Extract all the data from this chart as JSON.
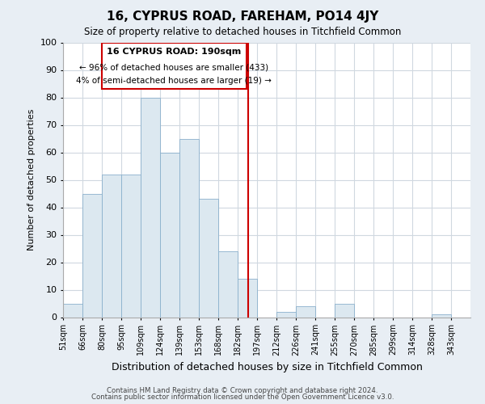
{
  "title": "16, CYPRUS ROAD, FAREHAM, PO14 4JY",
  "subtitle": "Size of property relative to detached houses in Titchfield Common",
  "xlabel": "Distribution of detached houses by size in Titchfield Common",
  "ylabel": "Number of detached properties",
  "footer_line1": "Contains HM Land Registry data © Crown copyright and database right 2024.",
  "footer_line2": "Contains public sector information licensed under the Open Government Licence v3.0.",
  "bin_labels": [
    "51sqm",
    "66sqm",
    "80sqm",
    "95sqm",
    "109sqm",
    "124sqm",
    "139sqm",
    "153sqm",
    "168sqm",
    "182sqm",
    "197sqm",
    "212sqm",
    "226sqm",
    "241sqm",
    "255sqm",
    "270sqm",
    "285sqm",
    "299sqm",
    "314sqm",
    "328sqm",
    "343sqm"
  ],
  "bar_heights": [
    5,
    45,
    52,
    52,
    80,
    60,
    65,
    43,
    24,
    14,
    0,
    2,
    4,
    0,
    5,
    0,
    0,
    0,
    0,
    1,
    0
  ],
  "bar_color": "#dce8f0",
  "bar_edge_color": "#8ab0cc",
  "vline_color": "#cc0000",
  "annotation_title": "16 CYPRUS ROAD: 190sqm",
  "annotation_line1": "← 96% of detached houses are smaller (433)",
  "annotation_line2": "4% of semi-detached houses are larger (19) →",
  "annotation_box_edge": "#cc0000",
  "ylim": [
    0,
    100
  ],
  "yticks": [
    0,
    10,
    20,
    30,
    40,
    50,
    60,
    70,
    80,
    90,
    100
  ],
  "figure_bg": "#e8eef4",
  "plot_bg": "#ffffff",
  "grid_color": "#d0d8e0"
}
